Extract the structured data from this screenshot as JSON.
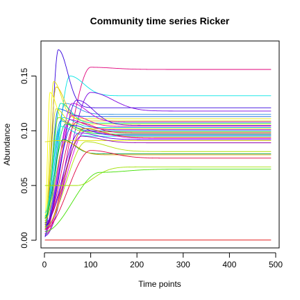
{
  "chart_data": {
    "type": "line",
    "title": "Community time series Ricker",
    "xlabel": "Time points",
    "ylabel": "Abundance",
    "xlim": [
      -7.5,
      507.5
    ],
    "ylim": [
      -0.007,
      0.182
    ],
    "x_ticks": [
      0,
      100,
      200,
      300,
      400,
      500
    ],
    "y_ticks": [
      0.0,
      0.05,
      0.1,
      0.15
    ],
    "x_tick_labels": [
      "0",
      "100",
      "200",
      "300",
      "400",
      "500"
    ],
    "y_tick_labels": [
      "0.00",
      "0.05",
      "0.10",
      "0.15"
    ],
    "x_range": [
      1,
      490
    ],
    "series_shape": "ricker",
    "series": [
      {
        "color": "#e0007a",
        "y0": 0.005,
        "peak": 0.158,
        "t_peak": 100,
        "final": 0.156
      },
      {
        "color": "#00e5e5",
        "y0": 0.004,
        "peak": 0.15,
        "t_peak": 55,
        "final": 0.132
      },
      {
        "color": "#3300dd",
        "y0": 0.003,
        "peak": 0.174,
        "t_peak": 30,
        "final": 0.121
      },
      {
        "color": "#7a00e0",
        "y0": 0.004,
        "peak": 0.135,
        "t_peak": 100,
        "final": 0.118
      },
      {
        "color": "#2f8fe0",
        "y0": 0.006,
        "peak": 0.125,
        "t_peak": 45,
        "final": 0.115
      },
      {
        "color": "#005ae0",
        "y0": 0.01,
        "peak": 0.12,
        "t_peak": 30,
        "final": 0.113
      },
      {
        "color": "#e6e600",
        "y0": 0.01,
        "peak": 0.145,
        "t_peak": 20,
        "final": 0.111
      },
      {
        "color": "#e0c200",
        "y0": 0.012,
        "peak": 0.14,
        "t_peak": 25,
        "final": 0.109
      },
      {
        "color": "#c000e0",
        "y0": 0.008,
        "peak": 0.125,
        "t_peak": 60,
        "final": 0.108
      },
      {
        "color": "#00e0a0",
        "y0": 0.015,
        "peak": 0.125,
        "t_peak": 35,
        "final": 0.107
      },
      {
        "color": "#ffff00",
        "y0": 0.02,
        "peak": 0.135,
        "t_peak": 12,
        "final": 0.106
      },
      {
        "color": "#5a00e0",
        "y0": 0.01,
        "peak": 0.128,
        "t_peak": 70,
        "final": 0.105
      },
      {
        "color": "#e000b0",
        "y0": 0.006,
        "peak": 0.114,
        "t_peak": 60,
        "final": 0.104
      },
      {
        "color": "#00c0e0",
        "y0": 0.018,
        "peak": 0.112,
        "t_peak": 40,
        "final": 0.103
      },
      {
        "color": "#d4e000",
        "y0": 0.014,
        "peak": 0.12,
        "t_peak": 25,
        "final": 0.102
      },
      {
        "color": "#a000e0",
        "y0": 0.012,
        "peak": 0.11,
        "t_peak": 55,
        "final": 0.101
      },
      {
        "color": "#0088e0",
        "y0": 0.02,
        "peak": 0.109,
        "t_peak": 35,
        "final": 0.1
      },
      {
        "color": "#8ae000",
        "y0": 0.016,
        "peak": 0.112,
        "t_peak": 30,
        "final": 0.099
      },
      {
        "color": "#e00060",
        "y0": 0.012,
        "peak": 0.108,
        "t_peak": 70,
        "final": 0.098
      },
      {
        "color": "#00e050",
        "y0": 0.022,
        "peak": 0.106,
        "t_peak": 45,
        "final": 0.097
      },
      {
        "color": "#2020e0",
        "y0": 0.012,
        "peak": 0.105,
        "t_peak": 60,
        "final": 0.096
      },
      {
        "color": "#00e0e0",
        "y0": 0.025,
        "peak": 0.104,
        "t_peak": 35,
        "final": 0.095
      },
      {
        "color": "#e06000",
        "y0": 0.01,
        "peak": 0.102,
        "t_peak": 85,
        "final": 0.094
      },
      {
        "color": "#e000e0",
        "y0": 0.01,
        "peak": 0.1,
        "t_peak": 90,
        "final": 0.093
      },
      {
        "color": "#6000e0",
        "y0": 0.014,
        "peak": 0.098,
        "t_peak": 75,
        "final": 0.092
      },
      {
        "color": "#e0e000",
        "y0": 0.09,
        "peak": 0.09,
        "t_peak": 2,
        "final": 0.091
      },
      {
        "color": "#9000b0",
        "y0": 0.016,
        "peak": 0.095,
        "t_peak": 80,
        "final": 0.089
      },
      {
        "color": "#b0e000",
        "y0": 0.012,
        "peak": 0.09,
        "t_peak": 90,
        "final": 0.081
      },
      {
        "color": "#00a040",
        "y0": 0.02,
        "peak": 0.092,
        "t_peak": 40,
        "final": 0.079
      },
      {
        "color": "#e0a000",
        "y0": 0.018,
        "peak": 0.09,
        "t_peak": 45,
        "final": 0.078
      },
      {
        "color": "#e00040",
        "y0": 0.01,
        "peak": 0.082,
        "t_peak": 100,
        "final": 0.075
      },
      {
        "color": "#a0e000",
        "y0": 0.05,
        "peak": 0.05,
        "t_peak": 70,
        "final": 0.067
      },
      {
        "color": "#40e000",
        "y0": 0.008,
        "peak": 0.062,
        "t_peak": 120,
        "final": 0.065
      },
      {
        "color": "#e00000",
        "y0": 0.0002,
        "peak": 0.0002,
        "t_peak": 1,
        "final": 0.0002
      }
    ]
  }
}
